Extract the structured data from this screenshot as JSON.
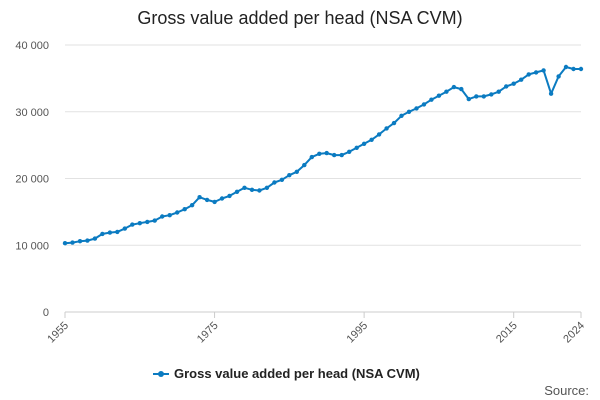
{
  "colors": {
    "series": "#0b7bc1",
    "grid": "#e2e2e2",
    "text": "#222222",
    "muted": "#555555"
  },
  "footer": {
    "source_label": "Source:"
  },
  "chart_data": {
    "type": "line",
    "title": "Gross value added per head (NSA CVM)",
    "xlabel": "",
    "ylabel": "",
    "xlim": [
      1955,
      2024
    ],
    "ylim": [
      0,
      40000
    ],
    "grid": true,
    "legend_position": "bottom",
    "x_tick_labels": [
      "1955",
      "1975",
      "1995",
      "2015",
      "2024"
    ],
    "x_tick_values": [
      1955,
      1975,
      1995,
      2015,
      2024
    ],
    "y_tick_labels": [
      "0",
      "10 000",
      "20 000",
      "30 000",
      "40 000"
    ],
    "y_tick_values": [
      0,
      10000,
      20000,
      30000,
      40000
    ],
    "series": [
      {
        "name": "Gross value added per head (NSA CVM)",
        "x": [
          1955,
          1956,
          1957,
          1958,
          1959,
          1960,
          1961,
          1962,
          1963,
          1964,
          1965,
          1966,
          1967,
          1968,
          1969,
          1970,
          1971,
          1972,
          1973,
          1974,
          1975,
          1976,
          1977,
          1978,
          1979,
          1980,
          1981,
          1982,
          1983,
          1984,
          1985,
          1986,
          1987,
          1988,
          1989,
          1990,
          1991,
          1992,
          1993,
          1994,
          1995,
          1996,
          1997,
          1998,
          1999,
          2000,
          2001,
          2002,
          2003,
          2004,
          2005,
          2006,
          2007,
          2008,
          2009,
          2010,
          2011,
          2012,
          2013,
          2014,
          2015,
          2016,
          2017,
          2018,
          2019,
          2020,
          2021,
          2022,
          2023,
          2024
        ],
        "values": [
          10300,
          10400,
          10600,
          10700,
          11000,
          11700,
          11900,
          12000,
          12500,
          13100,
          13300,
          13500,
          13700,
          14300,
          14500,
          14900,
          15400,
          16000,
          17200,
          16800,
          16500,
          17000,
          17400,
          18000,
          18600,
          18300,
          18200,
          18600,
          19400,
          19800,
          20500,
          21000,
          22000,
          23200,
          23700,
          23800,
          23500,
          23500,
          24000,
          24600,
          25200,
          25800,
          26600,
          27500,
          28300,
          29400,
          30000,
          30500,
          31100,
          31800,
          32400,
          33000,
          33700,
          33400,
          31900,
          32300,
          32300,
          32600,
          33000,
          33800,
          34200,
          34800,
          35600,
          35900,
          36200,
          32700,
          35300,
          36700,
          36400,
          36400
        ]
      }
    ]
  }
}
